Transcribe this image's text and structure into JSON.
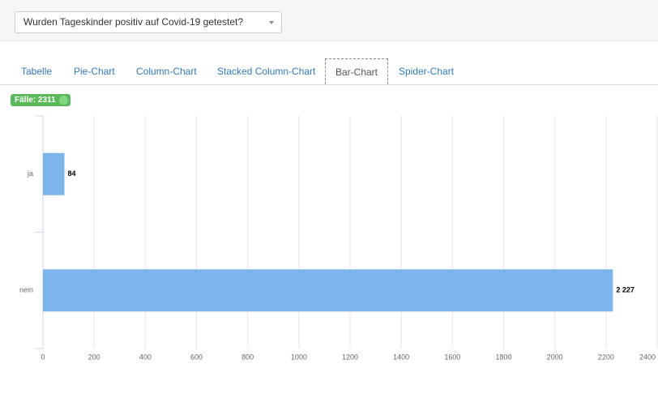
{
  "dropdown": {
    "label": "Wurden Tageskinder positiv auf Covid-19 getestet?"
  },
  "tabs": [
    "Tabelle",
    "Pie-Chart",
    "Column-Chart",
    "Stacked Column-Chart",
    "Bar-Chart",
    "Spider-Chart"
  ],
  "active_tab": 4,
  "badge": "Fälle: 2311",
  "chart_data": {
    "type": "bar",
    "orientation": "horizontal",
    "categories": [
      "ja",
      "nein"
    ],
    "values": [
      84,
      2227
    ],
    "value_labels": [
      "84",
      "2 227"
    ],
    "color": "#7cb5ec",
    "xlim": [
      0,
      2400
    ],
    "xticks": [
      0,
      200,
      400,
      600,
      800,
      1000,
      1200,
      1400,
      1600,
      1800,
      2000,
      2200,
      2400
    ],
    "grid": true
  }
}
